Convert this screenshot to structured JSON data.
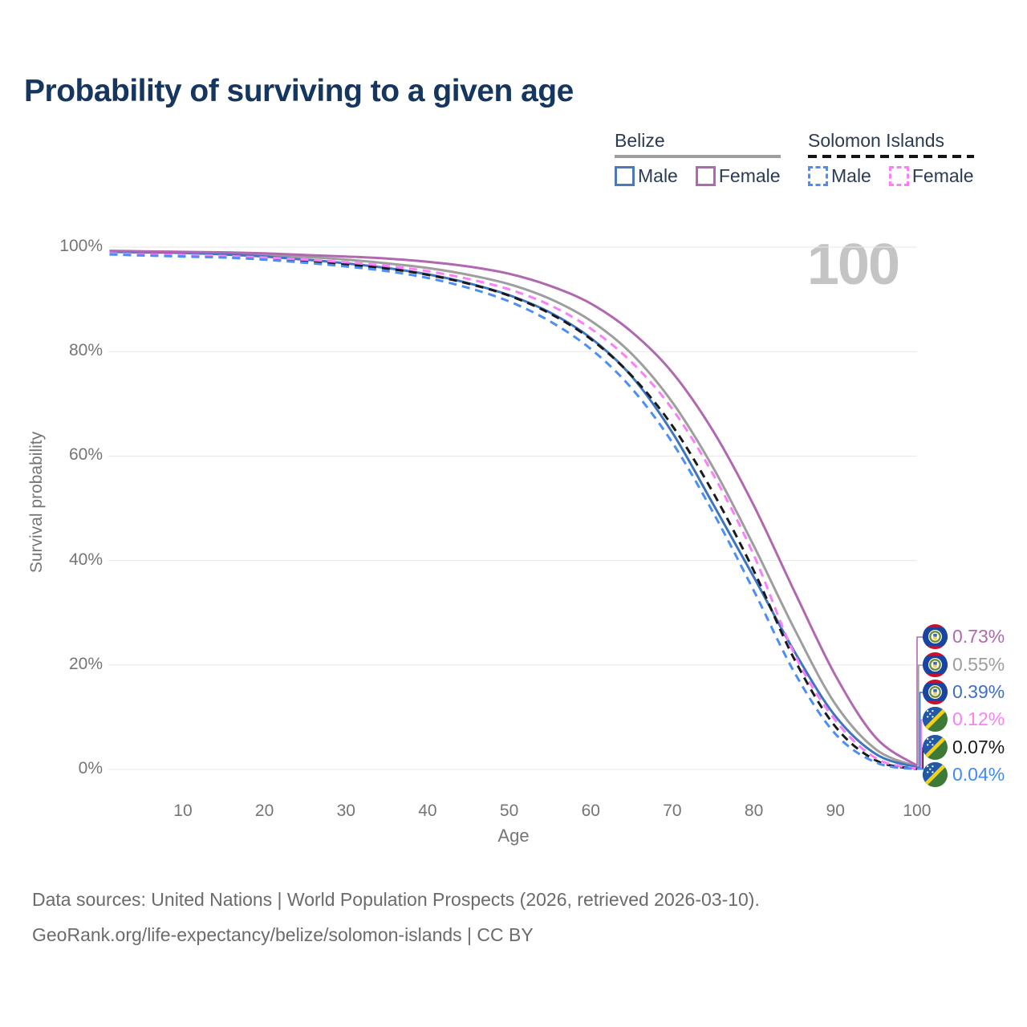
{
  "title": "Probability of surviving to a given age",
  "watermark_age": "100",
  "legend": {
    "belize": {
      "title": "Belize",
      "male_label": "Male",
      "female_label": "Female"
    },
    "solomon": {
      "title": "Solomon Islands",
      "male_label": "Male",
      "female_label": "Female"
    }
  },
  "chart_data": {
    "type": "line",
    "xlabel": "Age",
    "ylabel": "Survival probability",
    "xlim": [
      0,
      100
    ],
    "ylim": [
      0,
      100
    ],
    "grid": true,
    "x_ticks": [
      10,
      20,
      30,
      40,
      50,
      60,
      70,
      80,
      90,
      100
    ],
    "y_ticks": [
      {
        "label": "0%",
        "value": 0
      },
      {
        "label": "20%",
        "value": 20
      },
      {
        "label": "40%",
        "value": 40
      },
      {
        "label": "60%",
        "value": 60
      },
      {
        "label": "80%",
        "value": 80
      },
      {
        "label": "100%",
        "value": 100
      }
    ],
    "ages": [
      1,
      5,
      10,
      15,
      20,
      25,
      30,
      35,
      40,
      45,
      50,
      55,
      60,
      65,
      70,
      75,
      80,
      85,
      90,
      95,
      100
    ],
    "series": [
      {
        "id": "belize-female",
        "name": "Belize Female",
        "color": "#b069b0",
        "dashed": false,
        "end_value_pct": 0.73,
        "values": [
          99.3,
          99.2,
          99.1,
          99.0,
          98.8,
          98.5,
          98.2,
          97.8,
          97.2,
          96.3,
          94.9,
          92.6,
          89.2,
          83.8,
          76.0,
          64.8,
          50.5,
          34.0,
          18.0,
          6.0,
          0.73
        ]
      },
      {
        "id": "belize-total",
        "name": "Belize",
        "color": "#9e9e9e",
        "dashed": false,
        "end_value_pct": 0.55,
        "values": [
          99.2,
          99.1,
          99.0,
          98.8,
          98.5,
          98.1,
          97.6,
          96.9,
          96.0,
          94.7,
          92.9,
          90.1,
          85.9,
          79.6,
          70.3,
          57.8,
          42.8,
          26.8,
          12.5,
          3.8,
          0.55
        ]
      },
      {
        "id": "belize-male",
        "name": "Belize Male",
        "color": "#3f75c0",
        "dashed": false,
        "end_value_pct": 0.39,
        "values": [
          99.1,
          99.0,
          98.9,
          98.6,
          98.2,
          97.6,
          96.9,
          96.0,
          94.8,
          93.1,
          90.8,
          87.5,
          82.6,
          75.3,
          64.5,
          50.8,
          36.8,
          22.5,
          10.2,
          2.9,
          0.39
        ]
      },
      {
        "id": "solomon-islands-female",
        "name": "Solomon Islands Female",
        "color": "#fb7efb",
        "dashed": true,
        "end_value_pct": 0.12,
        "values": [
          98.8,
          98.6,
          98.5,
          98.3,
          98.0,
          97.6,
          97.1,
          96.4,
          95.4,
          93.9,
          91.9,
          88.9,
          84.4,
          78.0,
          69.0,
          56.5,
          41.0,
          22.0,
          9.4,
          2.1,
          0.12
        ]
      },
      {
        "id": "solomon-islands-total",
        "name": "Solomon Islands",
        "color": "#1a1a1a",
        "dashed": true,
        "end_value_pct": 0.07,
        "values": [
          98.7,
          98.5,
          98.4,
          98.2,
          97.8,
          97.3,
          96.7,
          95.9,
          94.7,
          93.0,
          90.7,
          87.3,
          82.4,
          75.4,
          65.8,
          53.0,
          38.0,
          21.0,
          8.2,
          1.7,
          0.07
        ]
      },
      {
        "id": "solomon-islands-male",
        "name": "Solomon Islands Male",
        "color": "#4b8ef5",
        "dashed": true,
        "end_value_pct": 0.04,
        "values": [
          98.6,
          98.4,
          98.2,
          98.0,
          97.6,
          97.0,
          96.3,
          95.4,
          94.1,
          92.2,
          89.6,
          85.8,
          80.5,
          73.0,
          62.6,
          49.2,
          34.2,
          18.5,
          6.8,
          1.3,
          0.04
        ]
      }
    ]
  },
  "end_labels": [
    {
      "value": "0.73%",
      "color": "#b069b0",
      "flag": "belize"
    },
    {
      "value": "0.55%",
      "color": "#9e9e9e",
      "flag": "belize"
    },
    {
      "value": "0.39%",
      "color": "#3f6ec7",
      "flag": "belize"
    },
    {
      "value": "0.12%",
      "color": "#fb7efb",
      "flag": "solomon-islands"
    },
    {
      "value": "0.07%",
      "color": "#1a1a1a",
      "flag": "solomon-islands"
    },
    {
      "value": "0.04%",
      "color": "#3d8bfd",
      "flag": "solomon-islands"
    }
  ],
  "footer": {
    "line1": "Data sources: United Nations | World Population Prospects (2026, retrieved 2026-03-10).",
    "line2": "GeoRank.org/life-expectancy/belize/solomon-islands | CC BY"
  }
}
